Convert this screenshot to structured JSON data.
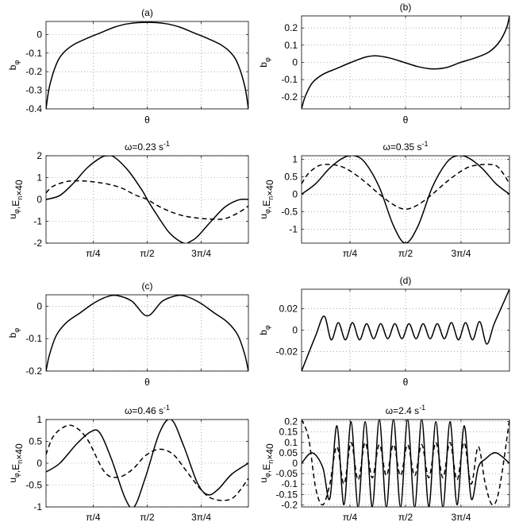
{
  "chart_data": [
    {
      "type": "line",
      "label": "(a)",
      "title": "",
      "xlabel": "θ",
      "ylabel": "b_φ",
      "xlim": [
        0.1,
        3.0416
      ],
      "ylim": [
        -0.4,
        0.07
      ],
      "xticks": [
        0.7854,
        1.5708,
        2.3562
      ],
      "xtick_labels": [],
      "yticks": [
        0,
        -0.1,
        -0.2,
        -0.3,
        -0.4
      ],
      "ytick_labels": [
        "0",
        "-0.1",
        "-0.2",
        "-0.3",
        "-0.4"
      ],
      "grid": true,
      "series": [
        {
          "style": "solid",
          "x": [
            0.1,
            0.15,
            0.25,
            0.35,
            0.5,
            0.7,
            0.9,
            1.1,
            1.3,
            1.5708,
            1.84,
            2.04,
            2.24,
            2.44,
            2.64,
            2.79,
            2.89,
            2.99,
            3.0416
          ],
          "y": [
            -0.4,
            -0.28,
            -0.16,
            -0.1,
            -0.055,
            -0.02,
            0.01,
            0.04,
            0.058,
            0.065,
            0.058,
            0.04,
            0.01,
            -0.02,
            -0.055,
            -0.1,
            -0.16,
            -0.28,
            -0.4
          ]
        }
      ]
    },
    {
      "type": "line",
      "label": "(b)",
      "title": "",
      "xlabel": "θ",
      "ylabel": "b_φ",
      "xlim": [
        0.1,
        3.0416
      ],
      "ylim": [
        -0.27,
        0.27
      ],
      "xticks": [
        0.7854,
        1.5708,
        2.3562
      ],
      "xtick_labels": [],
      "yticks": [
        0.2,
        0.1,
        0,
        -0.1,
        -0.2
      ],
      "ytick_labels": [
        "0.2",
        "0.1",
        "0",
        "-0.1",
        "-0.2"
      ],
      "grid": true,
      "series": [
        {
          "style": "solid",
          "x": [
            0.1,
            0.15,
            0.25,
            0.4,
            0.6,
            0.8,
            1.0,
            1.15,
            1.35,
            1.55,
            1.75,
            1.95,
            2.15,
            2.35,
            2.55,
            2.75,
            2.9,
            3.0,
            3.0416
          ],
          "y": [
            -0.27,
            -0.2,
            -0.12,
            -0.07,
            -0.035,
            0.0,
            0.03,
            0.038,
            0.025,
            0.0,
            -0.025,
            -0.038,
            -0.03,
            0.0,
            0.025,
            0.06,
            0.12,
            0.2,
            0.27
          ]
        }
      ]
    },
    {
      "type": "line",
      "label": "",
      "title": "ω=0.23 s",
      "title_sup": "-1",
      "xlabel": "",
      "ylabel": "u_φ,E_n×40",
      "xlim": [
        0.1,
        3.0416
      ],
      "ylim": [
        -2,
        2
      ],
      "xticks": [
        0.7854,
        1.5708,
        2.3562
      ],
      "xtick_labels": [
        "π/4",
        "π/2",
        "3π/4"
      ],
      "yticks": [
        2,
        1,
        0,
        -1,
        -2
      ],
      "ytick_labels": [
        "2",
        "1",
        "0",
        "-1",
        "-2"
      ],
      "grid": true,
      "series": [
        {
          "style": "solid",
          "x": [
            0.1,
            0.3,
            0.5,
            0.7,
            0.9,
            1.0,
            1.1,
            1.3,
            1.5,
            1.5708,
            1.7,
            1.9,
            2.1,
            2.2,
            2.3,
            2.5,
            2.7,
            2.9,
            3.0416
          ],
          "y": [
            0.0,
            0.18,
            0.75,
            1.45,
            1.92,
            2.0,
            1.92,
            1.3,
            0.4,
            0.0,
            -0.65,
            -1.55,
            -2.0,
            -1.92,
            -1.7,
            -1.0,
            -0.35,
            -0.02,
            0.0
          ]
        },
        {
          "style": "dashed",
          "x": [
            0.1,
            0.2,
            0.4,
            0.6,
            0.8,
            1.0,
            1.2,
            1.4,
            1.5708,
            1.7,
            1.9,
            2.1,
            2.3,
            2.5,
            2.7,
            2.9,
            3.0416
          ],
          "y": [
            0.3,
            0.6,
            0.82,
            0.85,
            0.8,
            0.7,
            0.52,
            0.2,
            0.0,
            -0.25,
            -0.55,
            -0.75,
            -0.85,
            -0.9,
            -0.88,
            -0.6,
            -0.3
          ]
        }
      ]
    },
    {
      "type": "line",
      "label": "",
      "title": "ω=0.35 s",
      "title_sup": "-1",
      "xlabel": "",
      "ylabel": "u_φ,E_n×40",
      "xlim": [
        0.1,
        3.0416
      ],
      "ylim": [
        -1.4,
        1.1
      ],
      "xticks": [
        0.7854,
        1.5708,
        2.3562
      ],
      "xtick_labels": [
        "π/4",
        "π/2",
        "3π/4"
      ],
      "yticks": [
        1,
        0.5,
        0,
        -0.5,
        -1
      ],
      "ytick_labels": [
        "1",
        "0.5",
        "0",
        "-0.5",
        "-1"
      ],
      "grid": true,
      "series": [
        {
          "style": "solid",
          "x": [
            0.1,
            0.3,
            0.5,
            0.7,
            0.85,
            1.0,
            1.2,
            1.4,
            1.5708,
            1.75,
            1.95,
            2.15,
            2.3,
            2.45,
            2.65,
            2.85,
            3.0416
          ],
          "y": [
            0.0,
            0.3,
            0.75,
            1.05,
            1.1,
            0.9,
            0.2,
            -0.9,
            -1.4,
            -0.9,
            0.2,
            0.9,
            1.1,
            1.05,
            0.75,
            0.3,
            0.0
          ]
        },
        {
          "style": "dashed",
          "x": [
            0.1,
            0.2,
            0.35,
            0.5,
            0.65,
            0.8,
            1.0,
            1.2,
            1.4,
            1.5708,
            1.75,
            1.95,
            2.15,
            2.35,
            2.5,
            2.7,
            2.85,
            2.95,
            3.0416
          ],
          "y": [
            0.3,
            0.6,
            0.82,
            0.85,
            0.8,
            0.65,
            0.35,
            0.0,
            -0.3,
            -0.43,
            -0.3,
            0.0,
            0.35,
            0.65,
            0.8,
            0.85,
            0.82,
            0.6,
            0.3
          ]
        }
      ]
    },
    {
      "type": "line",
      "label": "(c)",
      "title": "",
      "xlabel": "θ",
      "ylabel": "b_φ",
      "xlim": [
        0.1,
        3.0416
      ],
      "ylim": [
        -0.2,
        0.035
      ],
      "xticks": [
        0.7854,
        1.5708,
        2.3562
      ],
      "xtick_labels": [],
      "yticks": [
        0,
        -0.1,
        -0.2
      ],
      "ytick_labels": [
        "0",
        "-0.1",
        "-0.2"
      ],
      "grid": true,
      "series": [
        {
          "style": "solid",
          "x": [
            0.1,
            0.15,
            0.25,
            0.4,
            0.6,
            0.8,
            1.0,
            1.15,
            1.35,
            1.5708,
            1.79,
            1.99,
            2.14,
            2.34,
            2.54,
            2.74,
            2.89,
            2.99,
            3.0416
          ],
          "y": [
            -0.2,
            -0.15,
            -0.09,
            -0.05,
            -0.02,
            0.01,
            0.03,
            0.032,
            0.015,
            -0.03,
            0.015,
            0.032,
            0.03,
            0.01,
            -0.02,
            -0.05,
            -0.09,
            -0.15,
            -0.2
          ]
        }
      ]
    },
    {
      "type": "line",
      "label": "(d)",
      "title": "",
      "xlabel": "θ",
      "ylabel": "b_φ",
      "xlim": [
        0.1,
        3.0416
      ],
      "ylim": [
        -0.038,
        0.038
      ],
      "xticks": [
        0.7854,
        1.5708,
        2.3562
      ],
      "xtick_labels": [],
      "yticks": [
        0.02,
        0,
        -0.02
      ],
      "ytick_labels": [
        "0.02",
        "0",
        "-0.02"
      ],
      "grid": true,
      "series": [
        {
          "style": "solid",
          "x": [
            0.1,
            0.3,
            0.42,
            0.52,
            0.62,
            0.72,
            0.82,
            0.92,
            1.02,
            1.12,
            1.22,
            1.32,
            1.42,
            1.52,
            1.62,
            1.72,
            1.82,
            1.92,
            2.02,
            2.12,
            2.22,
            2.32,
            2.42,
            2.52,
            2.62,
            2.72,
            2.82,
            2.92,
            3.0416
          ],
          "y": [
            -0.038,
            -0.005,
            0.013,
            -0.009,
            0.007,
            -0.009,
            0.007,
            -0.009,
            0.006,
            -0.008,
            0.006,
            -0.008,
            0.006,
            -0.008,
            0.006,
            -0.008,
            0.006,
            -0.008,
            0.006,
            -0.008,
            0.007,
            -0.009,
            0.007,
            -0.009,
            0.008,
            -0.013,
            0.005,
            0.02,
            0.038
          ]
        }
      ]
    },
    {
      "type": "line",
      "label": "",
      "title": "ω=0.46 s",
      "title_sup": "-1",
      "xlabel": "",
      "ylabel": "u_φ,E_n×40",
      "xlim": [
        0.1,
        3.0416
      ],
      "ylim": [
        -1,
        1
      ],
      "xticks": [
        0.7854,
        1.5708,
        2.3562
      ],
      "xtick_labels": [
        "π/4",
        "π/2",
        "3π/4"
      ],
      "yticks": [
        1,
        0.5,
        0,
        -0.5,
        -1
      ],
      "ytick_labels": [
        "1",
        "0.5",
        "0",
        "-0.5",
        "-1"
      ],
      "grid": true,
      "series": [
        {
          "style": "solid",
          "x": [
            0.1,
            0.3,
            0.55,
            0.75,
            0.88,
            1.05,
            1.25,
            1.38,
            1.55,
            1.75,
            1.92,
            2.1,
            2.3,
            2.45,
            2.6,
            2.8,
            3.0416
          ],
          "y": [
            -0.2,
            0.0,
            0.45,
            0.72,
            0.7,
            0.1,
            -0.8,
            -1.0,
            -0.3,
            0.7,
            1.0,
            0.4,
            -0.45,
            -0.72,
            -0.6,
            -0.25,
            0.0
          ]
        },
        {
          "style": "dashed",
          "x": [
            0.1,
            0.2,
            0.35,
            0.5,
            0.7,
            0.95,
            1.15,
            1.35,
            1.55,
            1.75,
            1.95,
            2.15,
            2.35,
            2.5,
            2.7,
            2.85,
            3.0416
          ],
          "y": [
            0.2,
            0.6,
            0.82,
            0.85,
            0.55,
            -0.2,
            -0.32,
            -0.15,
            0.18,
            0.32,
            0.2,
            -0.2,
            -0.6,
            -0.8,
            -0.85,
            -0.75,
            -0.35
          ]
        }
      ]
    },
    {
      "type": "line",
      "label": "",
      "title": "ω=2.4 s",
      "title_sup": "-1",
      "xlabel": "",
      "ylabel": "u_φ,E_n×40",
      "xlim": [
        0.1,
        3.0416
      ],
      "ylim": [
        -0.21,
        0.21
      ],
      "xticks": [
        0.7854,
        1.5708,
        2.3562
      ],
      "xtick_labels": [
        "π/4",
        "π/2",
        "3π/4"
      ],
      "yticks": [
        0.2,
        0.15,
        0.1,
        0.05,
        0,
        -0.05,
        -0.1,
        -0.15,
        -0.2
      ],
      "ytick_labels": [
        "0.2",
        "0.15",
        "0.1",
        "0.05",
        "0",
        "-0.05",
        "-0.1",
        "-0.15",
        "-0.2"
      ],
      "grid": true,
      "series": [
        {
          "style": "solid",
          "x": [
            0.1,
            0.25,
            0.4,
            0.5,
            0.6,
            0.7,
            0.8,
            0.9,
            1.0,
            1.1,
            1.2,
            1.3,
            1.4,
            1.5,
            1.6,
            1.7,
            1.8,
            1.9,
            2.0,
            2.1,
            2.2,
            2.3,
            2.4,
            2.5,
            2.6,
            2.7,
            2.85,
            3.0416
          ],
          "y": [
            0.0,
            0.05,
            -0.02,
            -0.17,
            0.18,
            -0.2,
            0.2,
            -0.21,
            0.2,
            -0.21,
            0.21,
            -0.21,
            0.21,
            -0.21,
            0.21,
            -0.21,
            0.21,
            -0.21,
            0.2,
            -0.21,
            0.2,
            -0.2,
            0.18,
            -0.17,
            -0.02,
            0.02,
            0.05,
            0.0
          ]
        },
        {
          "style": "dashed",
          "x": [
            0.1,
            0.2,
            0.3,
            0.4,
            0.5,
            0.6,
            0.7,
            0.8,
            0.9,
            1.0,
            1.1,
            1.2,
            1.3,
            1.4,
            1.5,
            1.6,
            1.7,
            1.8,
            1.9,
            2.0,
            2.1,
            2.2,
            2.3,
            2.4,
            2.5,
            2.6,
            2.7,
            2.8,
            2.9,
            3.0416
          ],
          "y": [
            0.21,
            0.12,
            -0.12,
            -0.2,
            -0.1,
            0.08,
            -0.1,
            0.1,
            -0.08,
            0.1,
            -0.07,
            0.09,
            -0.06,
            0.09,
            -0.06,
            0.09,
            -0.06,
            0.09,
            -0.07,
            0.1,
            -0.07,
            0.1,
            -0.08,
            0.1,
            -0.1,
            0.08,
            -0.1,
            -0.2,
            -0.12,
            0.21
          ]
        }
      ]
    }
  ]
}
